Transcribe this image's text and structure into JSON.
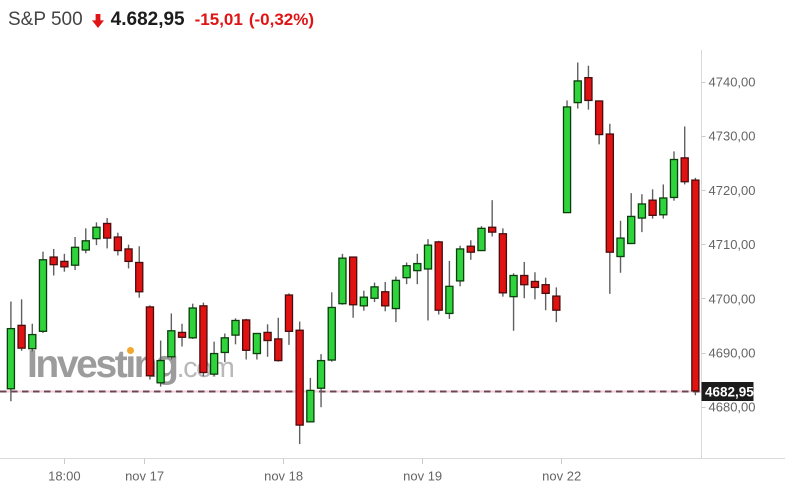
{
  "header": {
    "symbol": "S&P 500",
    "direction_icon": "arrow-down-icon",
    "last_price": "4.682,95",
    "change": "-15,01",
    "change_percent": "(-0,32%)",
    "change_color": "#e01414",
    "price_color": "#1c1c1c",
    "symbol_color": "#444444"
  },
  "watermark": {
    "brand": "Investing",
    "suffix": ".com",
    "dot_color": "#f2a72e"
  },
  "chart_data": {
    "type": "candlestick",
    "title": "S&P 500",
    "xlabel": "",
    "ylabel": "",
    "ylim": [
      4668,
      4746
    ],
    "grid": false,
    "legend": false,
    "y_axis": {
      "side": "right",
      "tick_labels": [
        "4740,00",
        "4730,00",
        "4720,00",
        "4710,00",
        "4700,00",
        "4690,00",
        "4680,00"
      ],
      "tick_values": [
        4740,
        4730,
        4720,
        4710,
        4700,
        4690,
        4680
      ],
      "label_color": "#656565",
      "axis_color": "#d9d9d9",
      "tick_color": "#c9c9c9"
    },
    "x_axis": {
      "tick_labels": [
        "18:00",
        "nov 17",
        "nov 18",
        "nov 19",
        "nov 22"
      ],
      "tick_candle_index": [
        5,
        13,
        26,
        39,
        52
      ],
      "tick_at": [
        "center",
        "left",
        "left",
        "left",
        "left"
      ],
      "label_color": "#656565",
      "axis_color": "#d9d9d9",
      "tick_color": "#c9c9c9"
    },
    "last_price": 4682.95,
    "last_price_label": "4682,95",
    "last_price_line": {
      "dash_color": "#6b4450",
      "base_color": "#f2ccd6"
    },
    "badge": {
      "bg": "#1c1c1c",
      "text_color": "#ffffff"
    },
    "colors": {
      "up_fill": "#2fd33c",
      "up_stroke": "#0c3d0c",
      "down_fill": "#e01212",
      "down_stroke": "#4a0d0d",
      "wick": "#606060"
    },
    "ohlc": [
      [
        4683.4,
        4699.5,
        4681.1,
        4694.5
      ],
      [
        4695.1,
        4699.9,
        4690.4,
        4690.9
      ],
      [
        4690.8,
        4695.4,
        4690.3,
        4693.4
      ],
      [
        4694.0,
        4708.7,
        4693.7,
        4707.2
      ],
      [
        4707.7,
        4709.2,
        4704.3,
        4706.3
      ],
      [
        4706.9,
        4708.3,
        4705.0,
        4705.9
      ],
      [
        4706.2,
        4711.4,
        4705.3,
        4709.5
      ],
      [
        4709.0,
        4713.0,
        4708.4,
        4710.7
      ],
      [
        4711.1,
        4714.1,
        4709.9,
        4713.2
      ],
      [
        4713.9,
        4714.9,
        4709.3,
        4711.2
      ],
      [
        4711.4,
        4712.2,
        4708.0,
        4708.9
      ],
      [
        4709.2,
        4710.0,
        4705.6,
        4706.9
      ],
      [
        4706.7,
        4709.7,
        4700.2,
        4701.3
      ],
      [
        4698.5,
        4698.8,
        4685.1,
        4685.8
      ],
      [
        4684.5,
        4692.3,
        4683.8,
        4688.6
      ],
      [
        4689.3,
        4697.3,
        4688.8,
        4694.1
      ],
      [
        4693.8,
        4695.4,
        4691.2,
        4692.9
      ],
      [
        4692.8,
        4699.1,
        4692.6,
        4698.3
      ],
      [
        4698.7,
        4699.3,
        4685.7,
        4686.4
      ],
      [
        4686.1,
        4692.1,
        4685.8,
        4689.9
      ],
      [
        4690.1,
        4693.6,
        4688.3,
        4692.8
      ],
      [
        4693.3,
        4696.4,
        4691.6,
        4696.0
      ],
      [
        4696.1,
        4696.3,
        4688.8,
        4690.5
      ],
      [
        4689.9,
        4693.7,
        4688.8,
        4693.6
      ],
      [
        4693.8,
        4695.3,
        4689.3,
        4692.3
      ],
      [
        4692.6,
        4696.5,
        4688.4,
        4688.6
      ],
      [
        4700.7,
        4701.0,
        4691.5,
        4694.0
      ],
      [
        4694.2,
        4695.8,
        4673.2,
        4676.7
      ],
      [
        4677.3,
        4685.4,
        4677.3,
        4683.1
      ],
      [
        4683.5,
        4689.8,
        4680.0,
        4688.6
      ],
      [
        4688.7,
        4701.2,
        4688.4,
        4698.4
      ],
      [
        4699.1,
        4708.3,
        4698.9,
        4707.5
      ],
      [
        4707.7,
        4707.7,
        4696.5,
        4698.9
      ],
      [
        4698.7,
        4701.5,
        4697.8,
        4700.3
      ],
      [
        4700.1,
        4703.0,
        4699.4,
        4702.2
      ],
      [
        4701.3,
        4703.1,
        4697.7,
        4698.7
      ],
      [
        4698.2,
        4704.1,
        4695.7,
        4703.4
      ],
      [
        4703.9,
        4706.7,
        4702.7,
        4706.1
      ],
      [
        4705.2,
        4708.3,
        4702.7,
        4706.5
      ],
      [
        4705.5,
        4711.0,
        4696.0,
        4709.9
      ],
      [
        4710.5,
        4710.7,
        4697.1,
        4697.9
      ],
      [
        4697.3,
        4707.0,
        4696.3,
        4702.3
      ],
      [
        4703.3,
        4709.8,
        4702.3,
        4709.2
      ],
      [
        4709.7,
        4710.8,
        4707.2,
        4708.6
      ],
      [
        4708.9,
        4713.4,
        4708.8,
        4713.0
      ],
      [
        4713.2,
        4718.2,
        4711.5,
        4712.3
      ],
      [
        4712.0,
        4713.0,
        4700.4,
        4701.1
      ],
      [
        4700.4,
        4704.7,
        4694.1,
        4704.3
      ],
      [
        4704.3,
        4706.8,
        4700.1,
        4702.6
      ],
      [
        4703.2,
        4704.9,
        4699.9,
        4702.1
      ],
      [
        4702.6,
        4703.9,
        4697.9,
        4701.0
      ],
      [
        4700.5,
        4702.1,
        4695.7,
        4697.9
      ],
      [
        4715.9,
        4736.6,
        4715.9,
        4735.4
      ],
      [
        4736.2,
        4743.6,
        4735.1,
        4740.2
      ],
      [
        4740.8,
        4743.0,
        4734.9,
        4736.6
      ],
      [
        4736.5,
        4736.6,
        4728.5,
        4730.3
      ],
      [
        4730.4,
        4732.3,
        4700.9,
        4708.6
      ],
      [
        4707.8,
        4714.4,
        4704.8,
        4711.2
      ],
      [
        4710.2,
        4719.5,
        4710.1,
        4715.2
      ],
      [
        4714.9,
        4719.3,
        4712.3,
        4717.5
      ],
      [
        4718.2,
        4720.2,
        4714.8,
        4715.4
      ],
      [
        4715.5,
        4721.1,
        4714.8,
        4718.6
      ],
      [
        4718.7,
        4727.2,
        4718.1,
        4725.7
      ],
      [
        4726.0,
        4731.8,
        4721.1,
        4721.6
      ],
      [
        4721.9,
        4722.3,
        4682.2,
        4683.0
      ]
    ]
  }
}
